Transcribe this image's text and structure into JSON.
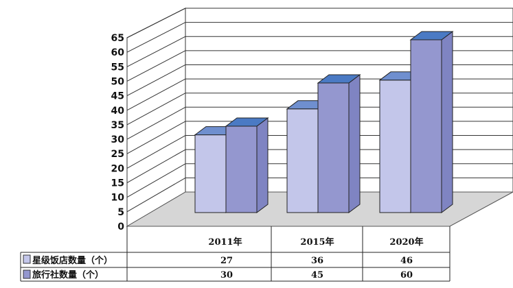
{
  "chart_data": {
    "type": "bar",
    "categories": [
      "2011年",
      "2015年",
      "2020年"
    ],
    "series": [
      {
        "name": "星级饭店数量（个）",
        "values": [
          27,
          36,
          46
        ],
        "color": "#c3c6ea",
        "side_color": "#9aa0d2",
        "top_color": "#6f8fcf"
      },
      {
        "name": "旅行社数量（个）",
        "values": [
          30,
          45,
          60
        ],
        "color": "#9497cf",
        "side_color": "#7f84c2",
        "top_color": "#4a7ac4"
      }
    ],
    "y_ticks": [
      "0",
      "5",
      "10",
      "15",
      "20",
      "25",
      "30",
      "35",
      "40",
      "45",
      "50",
      "55",
      "60",
      "65"
    ],
    "ylim": [
      0,
      65
    ],
    "grid": true,
    "legend": "data-table-left",
    "view": "3d-clustered-column"
  }
}
